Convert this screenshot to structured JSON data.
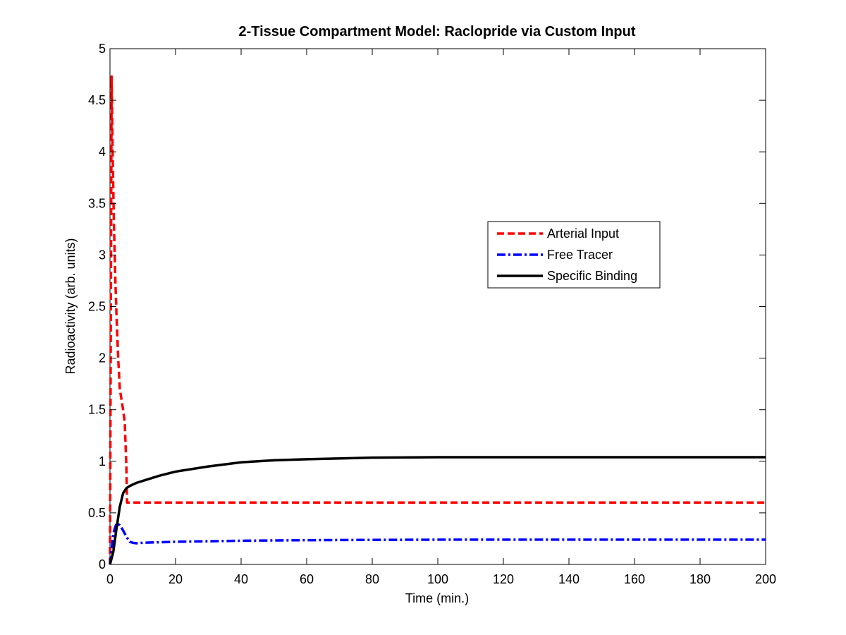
{
  "chart_data": {
    "type": "line",
    "title": "2-Tissue Compartment Model: Raclopride via Custom Input",
    "xlabel": "Time (min.)",
    "ylabel": "Radioactivity (arb. units)",
    "xlim": [
      0,
      200
    ],
    "ylim": [
      0,
      5
    ],
    "x_ticks": [
      0,
      20,
      40,
      60,
      80,
      100,
      120,
      140,
      160,
      180,
      200
    ],
    "y_ticks": [
      0,
      0.5,
      1,
      1.5,
      2,
      2.5,
      3,
      3.5,
      4,
      4.5,
      5
    ],
    "x_tick_labels": [
      "0",
      "20",
      "40",
      "60",
      "80",
      "100",
      "120",
      "140",
      "160",
      "180",
      "200"
    ],
    "y_tick_labels": [
      "0",
      "0.5",
      "1",
      "1.5",
      "2",
      "2.5",
      "3",
      "3.5",
      "4",
      "4.5",
      "5"
    ],
    "grid": false,
    "legend_position": "right",
    "series": [
      {
        "name": "Arterial Input",
        "color": "#ff0000",
        "style": "dashed",
        "x": [
          0,
          0.5,
          0.8,
          1.2,
          1.6,
          2,
          2.5,
          3,
          3.5,
          4,
          4.5,
          5,
          5.2,
          6,
          10,
          20,
          50,
          100,
          150,
          200
        ],
        "y": [
          0,
          4.73,
          4.0,
          3.3,
          2.8,
          2.4,
          2.0,
          1.7,
          1.6,
          1.5,
          1.38,
          0.95,
          0.6,
          0.6,
          0.6,
          0.6,
          0.6,
          0.6,
          0.6,
          0.6
        ]
      },
      {
        "name": "Free Tracer",
        "color": "#0000ff",
        "style": "dashdot",
        "x": [
          0,
          0.5,
          1,
          2,
          3,
          4,
          5,
          6,
          7,
          8,
          10,
          15,
          20,
          30,
          40,
          60,
          80,
          100,
          150,
          200
        ],
        "y": [
          0,
          0.15,
          0.3,
          0.4,
          0.38,
          0.33,
          0.27,
          0.22,
          0.21,
          0.205,
          0.21,
          0.215,
          0.22,
          0.225,
          0.23,
          0.235,
          0.238,
          0.24,
          0.24,
          0.24
        ]
      },
      {
        "name": "Specific Binding",
        "color": "#000000",
        "style": "solid",
        "x": [
          0,
          1,
          2,
          3,
          4,
          5,
          6,
          8,
          10,
          15,
          20,
          30,
          40,
          50,
          60,
          80,
          100,
          120,
          150,
          200
        ],
        "y": [
          0,
          0.12,
          0.35,
          0.56,
          0.69,
          0.74,
          0.76,
          0.79,
          0.81,
          0.86,
          0.9,
          0.95,
          0.99,
          1.01,
          1.02,
          1.035,
          1.04,
          1.04,
          1.04,
          1.04
        ]
      }
    ]
  }
}
